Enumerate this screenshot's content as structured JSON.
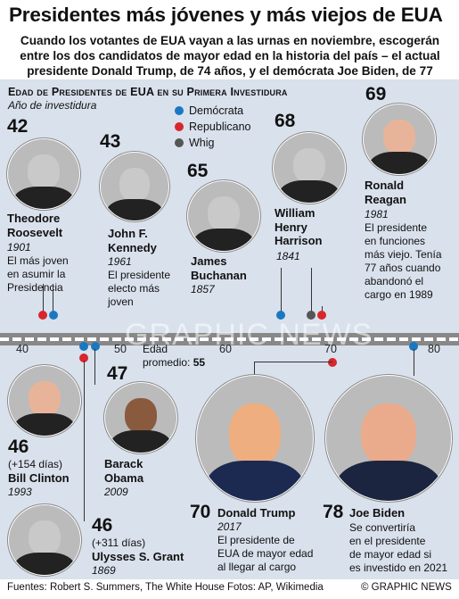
{
  "title": "Presidentes más jóvenes y más viejos de EUA",
  "subtitle": "Cuando los votantes de EUA vayan a las urnas en noviembre, escogerán entre los dos candidatos de mayor edad en la historia del país – el actual presidente Donald Trump, de 74 años, y el demócrata Joe Biden, de 77",
  "section": {
    "title": "Edad de Presidentes de EUA en su Primera Investidura",
    "subtitle": "Año de investidura"
  },
  "legend": [
    {
      "label": "Demócrata",
      "color": "#1a78c2"
    },
    {
      "label": "Republicano",
      "color": "#d8262c"
    },
    {
      "label": "Whig",
      "color": "#555555"
    }
  ],
  "axis": {
    "ticks": [
      "40",
      "50",
      "60",
      "70",
      "80"
    ],
    "min": 40,
    "max": 80
  },
  "average": {
    "label": "Edad",
    "value_label": "promedio:",
    "value": "55"
  },
  "presidents": {
    "roosevelt": {
      "age": "42",
      "name_line1": "Theodore",
      "name_line2": "Roosevelt",
      "year": "1901",
      "note": [
        "El más joven",
        "en asumir la",
        "Presidencia"
      ]
    },
    "kennedy": {
      "age": "43",
      "name_line1": "John F.",
      "name_line2": "Kennedy",
      "year": "1961",
      "note": [
        "El presidente",
        "electo más",
        "joven"
      ]
    },
    "buchanan": {
      "age": "65",
      "name_line1": "James",
      "name_line2": "Buchanan",
      "year": "1857"
    },
    "harrison": {
      "age": "68",
      "name_line1": "William",
      "name_line2": "Henry",
      "name_line3": "Harrison",
      "year": "1841"
    },
    "reagan": {
      "age": "69",
      "name_line1": "Ronald",
      "name_line2": "Reagan",
      "year": "1981",
      "note": [
        "El presidente",
        "en funciones",
        "más viejo. Tenía",
        "77 años cuando",
        "abandonó el",
        "cargo en 1989"
      ]
    },
    "clinton": {
      "age": "46",
      "extra": "(+154 días)",
      "name": "Bill Clinton",
      "year": "1993"
    },
    "obama": {
      "age": "47",
      "name_line1": "Barack",
      "name_line2": "Obama",
      "year": "2009"
    },
    "grant": {
      "age": "46",
      "extra": "(+311 días)",
      "name": "Ulysses S. Grant",
      "year": "1869"
    },
    "trump": {
      "age": "70",
      "name": "Donald Trump",
      "year": "2017",
      "note": [
        "El presidente de",
        "EUA de mayor edad",
        "al llegar al cargo"
      ]
    },
    "biden": {
      "age": "78",
      "name": "Joe Biden",
      "note": [
        "Se convertiría",
        "en el presidente",
        "de mayor edad si",
        "es investido en 2021"
      ]
    }
  },
  "footer": {
    "sources": "Fuentes: Robert S. Summers, The White House",
    "photos": "Fotos: AP, Wikimedia",
    "credit": "© GRAPHIC NEWS"
  },
  "watermark": "GRAPHIC NEWS"
}
